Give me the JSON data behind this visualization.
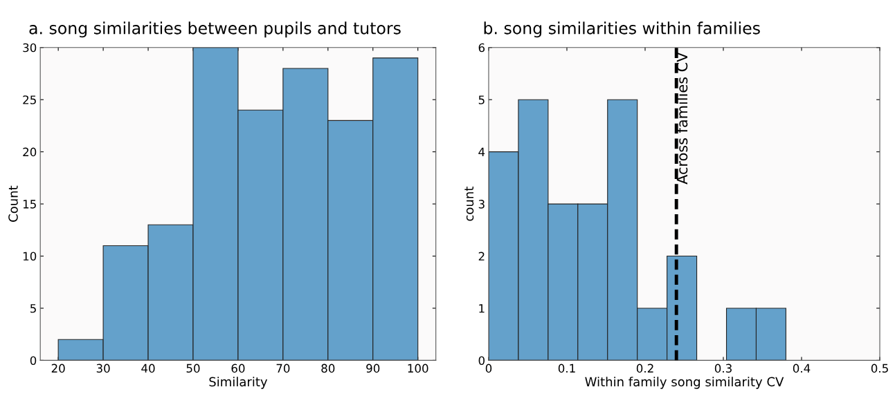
{
  "chart_data": [
    {
      "type": "histogram",
      "title": "a. song similarities between pupils and tutors",
      "xlabel": "Similarity",
      "ylabel": "Count",
      "bins": [
        20,
        30,
        40,
        50,
        60,
        70,
        80,
        90,
        100
      ],
      "values": [
        2,
        11,
        13,
        30,
        24,
        28,
        23,
        29
      ],
      "color": "#64a1cb",
      "xlim": [
        16,
        104
      ],
      "xticks": [
        20,
        30,
        40,
        50,
        60,
        70,
        80,
        90,
        100
      ],
      "ylim": [
        0,
        30
      ],
      "yticks": [
        0,
        5,
        10,
        15,
        20,
        25,
        30
      ],
      "grid": false
    },
    {
      "type": "histogram",
      "title": "b. song similarities within families",
      "xlabel": "Within family song similarity CV",
      "ylabel": "count",
      "bins": [
        0,
        0.038,
        0.076,
        0.114,
        0.152,
        0.19,
        0.228,
        0.266,
        0.304,
        0.342,
        0.38
      ],
      "values": [
        4,
        5,
        3,
        3,
        5,
        1,
        2,
        0,
        1,
        1
      ],
      "color": "#64a1cb",
      "xlim": [
        0,
        0.5
      ],
      "xticks": [
        0,
        0.1,
        0.2,
        0.3,
        0.4,
        0.5
      ],
      "ylim": [
        0,
        6
      ],
      "yticks": [
        0,
        1,
        2,
        3,
        4,
        5,
        6
      ],
      "grid": false,
      "ref_lines": [
        {
          "axis": "x",
          "value": 0.24,
          "label": "Across families CV",
          "color": "#000000",
          "line_style": "dashed"
        }
      ]
    }
  ]
}
